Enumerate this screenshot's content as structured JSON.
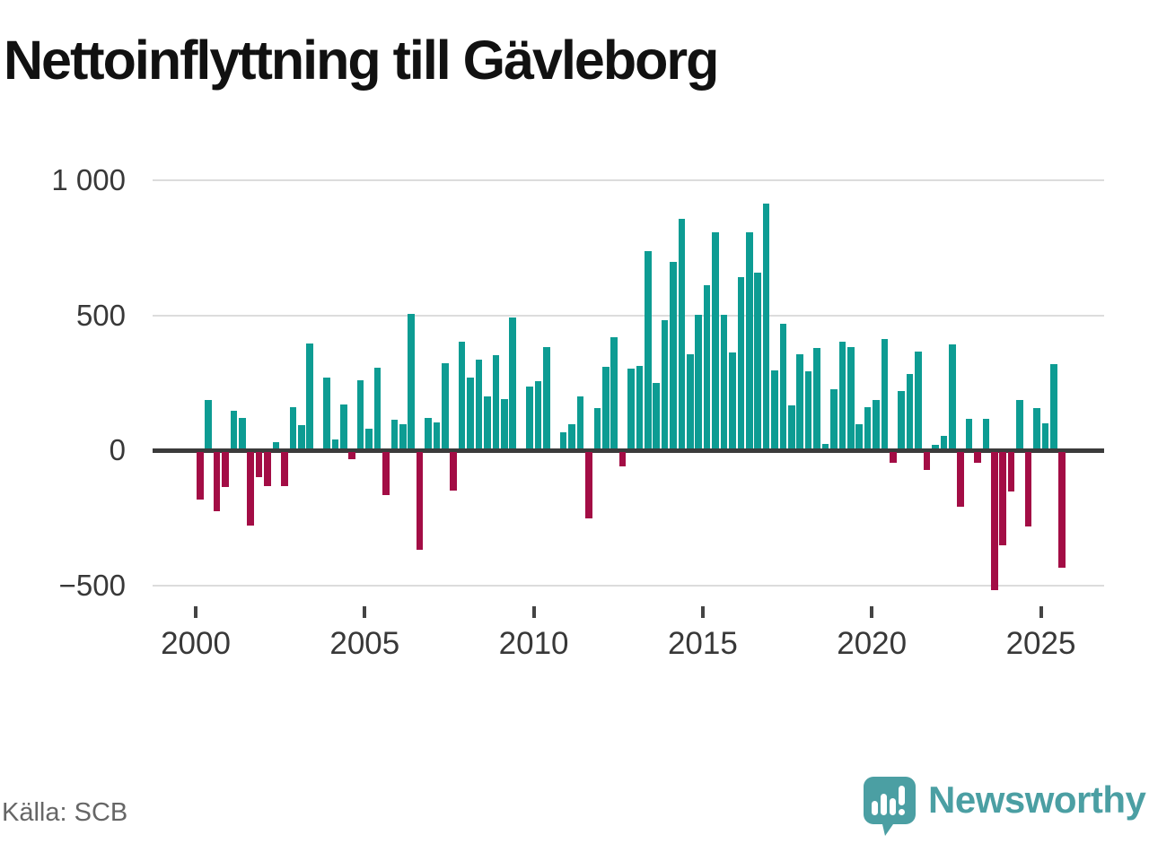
{
  "title": "Nettoinflyttning till Gävleborg",
  "source": "Källa: SCB",
  "logo": {
    "wordmark": "Newsworthy",
    "icon": "newsworthy-speech-bubble-barchart-icon",
    "color": "#4b9fa3"
  },
  "colors": {
    "positive_bar": "#0d9c93",
    "negative_bar": "#a30d45",
    "gridline": "#dcdcdc",
    "zero_axis": "#3b3b3b",
    "tick_label": "#383838",
    "source_text": "#666666"
  },
  "chart_data": {
    "type": "bar",
    "title": "Nettoinflyttning till Gävleborg",
    "x_unit": "quarter",
    "period_start": "2000Q1",
    "period_end": "2025Q3",
    "values": [
      -177,
      181,
      -218,
      -128,
      141,
      113,
      -274,
      -94,
      -125,
      22,
      -125,
      152,
      86,
      390,
      0,
      261,
      33,
      163,
      -28,
      252,
      72,
      300,
      -161,
      106,
      91,
      498,
      -361,
      114,
      97,
      317,
      -144,
      394,
      261,
      328,
      194,
      344,
      183,
      485,
      0,
      228,
      250,
      375,
      0,
      61,
      89,
      192,
      -245,
      150,
      302,
      413,
      -53,
      296,
      305,
      730,
      241,
      474,
      692,
      850,
      350,
      496,
      603,
      800,
      494,
      355,
      636,
      800,
      652,
      907,
      289,
      461,
      161,
      350,
      286,
      372,
      15,
      220,
      394,
      374,
      89,
      153,
      180,
      405,
      -39,
      211,
      276,
      359,
      -65,
      13,
      48,
      385,
      -203,
      109,
      -41,
      109,
      -510,
      -344,
      -145,
      181,
      -277,
      148,
      92,
      311,
      -430
    ],
    "y_ticks": [
      {
        "label": "1 000",
        "value": 1000
      },
      {
        "label": "500",
        "value": 500
      },
      {
        "label": "0",
        "value": 0
      },
      {
        "label": "−500",
        "value": -500
      }
    ],
    "x_ticks": [
      {
        "label": "2000",
        "quarter_index": 0
      },
      {
        "label": "2005",
        "quarter_index": 20
      },
      {
        "label": "2010",
        "quarter_index": 40
      },
      {
        "label": "2015",
        "quarter_index": 60
      },
      {
        "label": "2020",
        "quarter_index": 80
      },
      {
        "label": "2025",
        "quarter_index": 100
      }
    ],
    "ylim": [
      -560,
      1060
    ],
    "grid": true,
    "legend": false
  }
}
